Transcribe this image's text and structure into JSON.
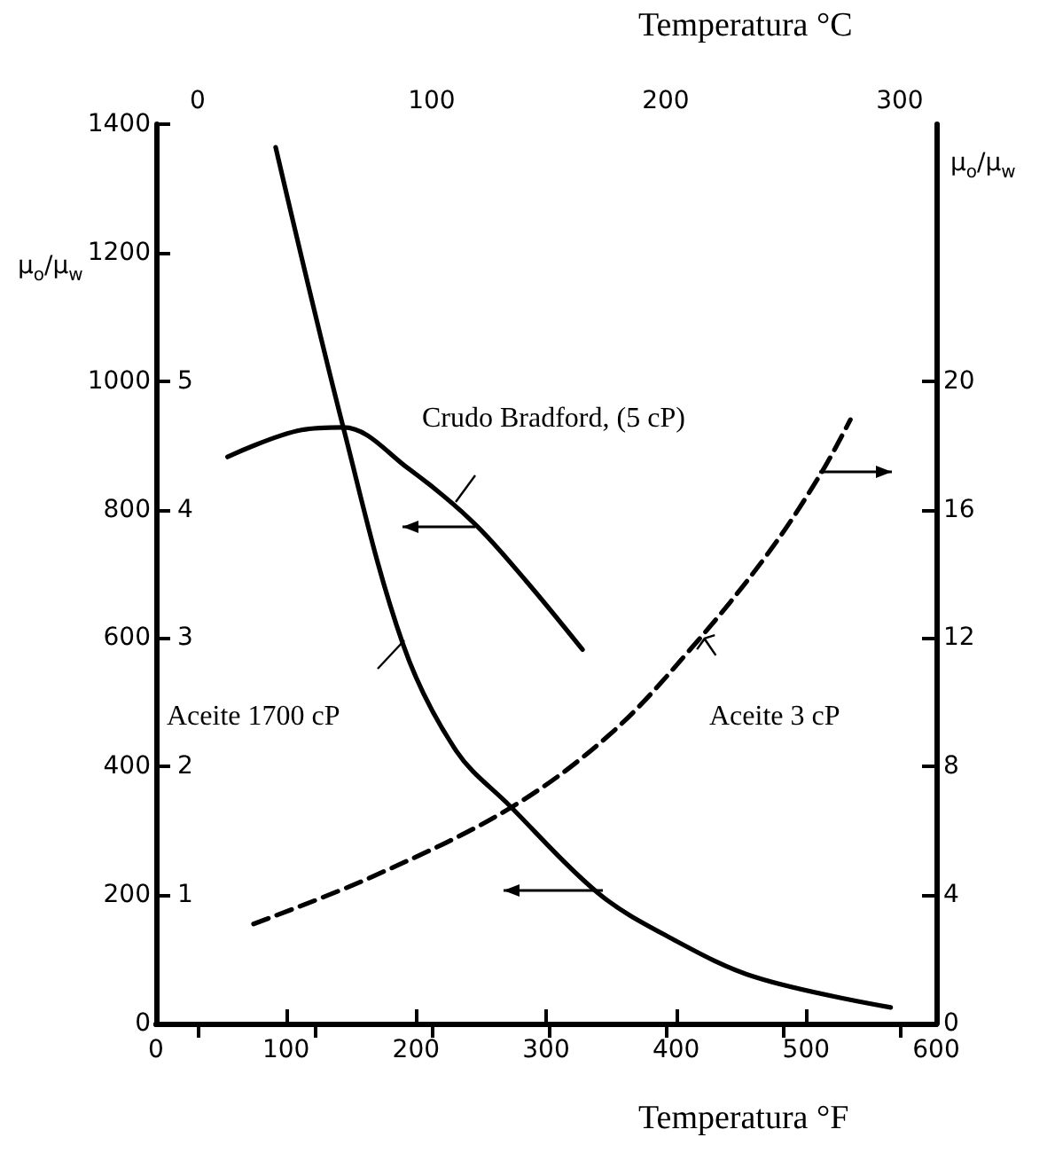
{
  "chart_data": {
    "type": "line",
    "xlabel": "Temperatura °F",
    "x2label": "Temperatura °C",
    "ylabel": "μ$_{o}$/μ$_{w}$",
    "y3label": "μ$_{o}$/μ$_{w}$",
    "xlim": [
      0,
      600
    ],
    "xticks": [
      0,
      100,
      200,
      300,
      400,
      500,
      600
    ],
    "x2lim": [
      -17.78,
      315.56
    ],
    "x2ticks": [
      0,
      {
        "value": 50,
        "label": null
      },
      100,
      {
        "value": 150,
        "label": null
      },
      200,
      {
        "value": 250,
        "label": null
      },
      300
    ],
    "ylim": [
      0,
      1400
    ],
    "yticks": [
      0,
      200,
      400,
      600,
      800,
      1000,
      1200,
      1400
    ],
    "y2lim": [
      0,
      7
    ],
    "y2ticks": [
      1,
      2,
      3,
      4,
      5
    ],
    "y3lim": [
      0,
      28
    ],
    "y3ticks": [
      0,
      4,
      8,
      12,
      16,
      20
    ],
    "legend": false,
    "grid": false,
    "marker": "none",
    "series": [
      {
        "name": "Crudo Bradford, (5 cP)",
        "color": "#000000",
        "axis": "y2",
        "line_style": "solid",
        "x": [
          55,
          112,
          144,
          194,
          244,
          285,
          328
        ],
        "values": [
          4.41,
          4.62,
          4.64,
          4.32,
          3.9,
          3.44,
          2.91
        ]
      },
      {
        "name": "Aceite 1700 cP",
        "color": "#000000",
        "axis": "y",
        "line_style": "solid",
        "x": [
          92,
          144,
          190,
          231,
          272,
          340,
          394,
          461,
          565
        ],
        "values": [
          1364,
          928,
          590,
          424,
          339,
          203,
          135,
          72,
          25
        ]
      },
      {
        "name": "Aceite 3 cP",
        "color": "#000000",
        "axis": "y3",
        "line_style": "dashed",
        "x": [
          75,
          168,
          272,
          349,
          412,
          470,
          511,
          534
        ],
        "values": [
          3.1,
          4.6,
          6.7,
          9.0,
          11.7,
          14.6,
          17.1,
          18.8
        ]
      }
    ]
  }
}
